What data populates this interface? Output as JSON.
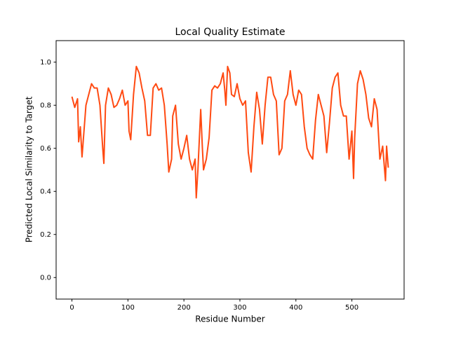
{
  "chart_data": {
    "type": "line",
    "title": "Local Quality Estimate",
    "xlabel": "Residue Number",
    "ylabel": "Predicted Local Similarity to Target",
    "x": [
      0,
      5,
      10,
      12,
      15,
      18,
      25,
      30,
      35,
      40,
      45,
      50,
      55,
      57,
      60,
      65,
      70,
      75,
      80,
      85,
      90,
      95,
      100,
      102,
      105,
      110,
      115,
      120,
      125,
      130,
      135,
      140,
      145,
      150,
      155,
      160,
      165,
      170,
      173,
      178,
      180,
      185,
      190,
      195,
      200,
      205,
      210,
      215,
      220,
      222,
      225,
      230,
      233,
      235,
      240,
      245,
      250,
      255,
      260,
      265,
      270,
      273,
      275,
      278,
      282,
      285,
      290,
      295,
      300,
      305,
      310,
      315,
      320,
      325,
      330,
      335,
      340,
      345,
      350,
      355,
      360,
      365,
      370,
      375,
      380,
      385,
      390,
      395,
      400,
      405,
      410,
      415,
      420,
      425,
      430,
      435,
      440,
      445,
      450,
      455,
      460,
      465,
      470,
      475,
      480,
      485,
      490,
      495,
      500,
      503,
      505,
      510,
      515,
      520,
      525,
      530,
      535,
      540,
      545,
      550,
      555,
      560,
      562,
      565
    ],
    "values": [
      0.84,
      0.79,
      0.83,
      0.63,
      0.7,
      0.56,
      0.8,
      0.85,
      0.9,
      0.88,
      0.88,
      0.8,
      0.6,
      0.53,
      0.8,
      0.88,
      0.85,
      0.79,
      0.8,
      0.83,
      0.87,
      0.8,
      0.82,
      0.68,
      0.64,
      0.85,
      0.98,
      0.95,
      0.88,
      0.82,
      0.66,
      0.66,
      0.88,
      0.9,
      0.87,
      0.88,
      0.8,
      0.62,
      0.49,
      0.55,
      0.75,
      0.8,
      0.62,
      0.55,
      0.6,
      0.66,
      0.55,
      0.5,
      0.55,
      0.37,
      0.5,
      0.78,
      0.6,
      0.5,
      0.55,
      0.65,
      0.87,
      0.89,
      0.88,
      0.9,
      0.95,
      0.87,
      0.8,
      0.98,
      0.95,
      0.85,
      0.84,
      0.9,
      0.83,
      0.8,
      0.82,
      0.58,
      0.49,
      0.7,
      0.86,
      0.78,
      0.62,
      0.8,
      0.93,
      0.93,
      0.85,
      0.82,
      0.57,
      0.6,
      0.82,
      0.85,
      0.96,
      0.85,
      0.8,
      0.87,
      0.85,
      0.7,
      0.6,
      0.57,
      0.55,
      0.73,
      0.85,
      0.8,
      0.75,
      0.58,
      0.72,
      0.88,
      0.93,
      0.95,
      0.8,
      0.75,
      0.75,
      0.55,
      0.68,
      0.46,
      0.65,
      0.9,
      0.96,
      0.92,
      0.85,
      0.74,
      0.7,
      0.83,
      0.78,
      0.55,
      0.61,
      0.45,
      0.61,
      0.51
    ],
    "color": "#ff4a12",
    "xlim": [
      -28.25,
      593.25
    ],
    "ylim": [
      -0.1,
      1.1
    ],
    "xticks": [
      0,
      100,
      200,
      300,
      400,
      500
    ],
    "yticks": [
      {
        "value": 0,
        "label": "0.0"
      },
      0.2,
      0.4,
      0.6,
      0.8,
      {
        "value": 1,
        "label": "1.0"
      }
    ]
  }
}
